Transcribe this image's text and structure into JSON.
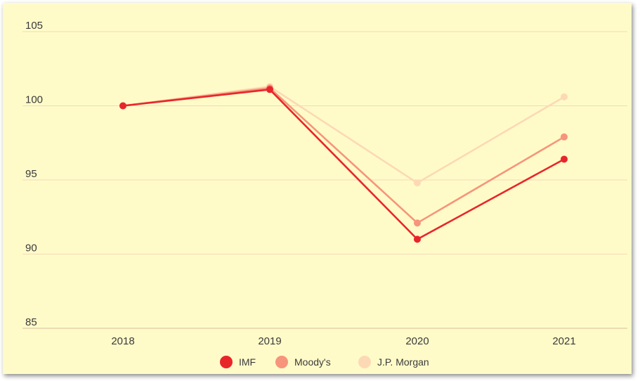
{
  "chart_data": {
    "type": "line",
    "x": [
      "2018",
      "2019",
      "2020",
      "2021"
    ],
    "yticks": [
      85,
      90,
      95,
      100,
      105
    ],
    "ylim": [
      85,
      105
    ],
    "grid": true,
    "legend_position": "bottom-center",
    "series": [
      {
        "name": "J.P. Morgan",
        "color": "#fcd9b4",
        "values": [
          100,
          101.3,
          94.8,
          100.6
        ]
      },
      {
        "name": "Moody's",
        "color": "#f6957b",
        "values": [
          100,
          101.2,
          92.1,
          97.9
        ]
      },
      {
        "name": "IMF",
        "color": "#e8262a",
        "values": [
          100,
          101.1,
          91.0,
          96.4
        ]
      }
    ],
    "legend": [
      {
        "label": "IMF",
        "color": "#e8262a"
      },
      {
        "label": "Moody's",
        "color": "#f6957b"
      },
      {
        "label": "J.P. Morgan",
        "color": "#fcd9b4"
      }
    ]
  }
}
